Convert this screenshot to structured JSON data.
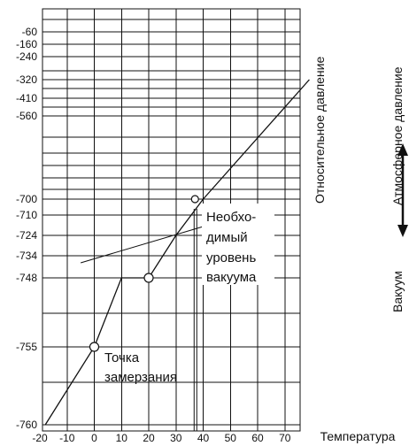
{
  "chart_data": {
    "type": "line",
    "x_axis_label": "Температура",
    "x_ticks": [
      "-20",
      "-10",
      "0",
      "10",
      "20",
      "30",
      "40",
      "50",
      "60",
      "70"
    ],
    "x_values": [
      -20,
      -10,
      0,
      10,
      20,
      30,
      40,
      50,
      60,
      70
    ],
    "y_ticks": [
      "-60",
      "-160",
      "-240",
      "-320",
      "-410",
      "-560",
      "-700",
      "-710",
      "-724",
      "-734",
      "-748",
      "-755",
      "-760"
    ],
    "y_left_label": "Относительное давление",
    "y_right_top_label": "Атмосферное давление",
    "y_right_bottom_label": "Вакуум",
    "series": [
      {
        "values_by_tick": [
          {
            "x": -18,
            "y": "-760"
          },
          {
            "x": 0,
            "y": "-755"
          },
          {
            "x": 10,
            "y": "-748"
          },
          {
            "x": 20,
            "y": "-748"
          },
          {
            "x": 30,
            "y": "-724"
          },
          {
            "x": 40,
            "y": "-700"
          },
          {
            "x": 79,
            "y": "-320"
          }
        ]
      }
    ],
    "markers": [
      {
        "x": 0,
        "y": "-755"
      },
      {
        "x": 20,
        "y": "-748"
      },
      {
        "x": 37,
        "y": "-700"
      }
    ],
    "annotations": [
      {
        "text": "Точка",
        "group": "freeze"
      },
      {
        "text": "замерзания",
        "group": "freeze"
      },
      {
        "text": "Необхо-",
        "group": "vacuum"
      },
      {
        "text": "димый",
        "group": "vacuum"
      },
      {
        "text": "уровень",
        "group": "vacuum"
      },
      {
        "text": "вакуума",
        "group": "vacuum"
      }
    ]
  }
}
